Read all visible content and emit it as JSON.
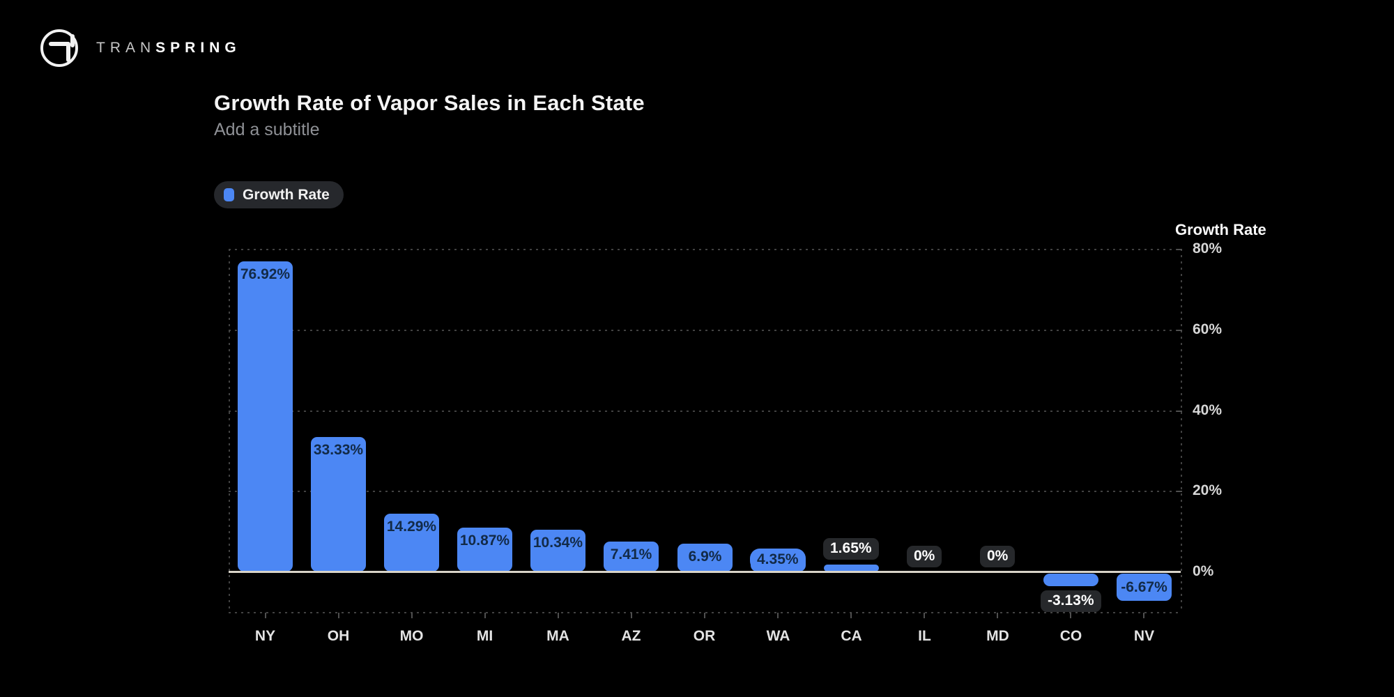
{
  "brand": {
    "name_light": "TRAN",
    "name_bold": "SPRING",
    "logo_icon": "transpring-circle-arrow"
  },
  "header": {
    "title": "Growth Rate of Vapor Sales in Each State",
    "subtitle": "Add a subtitle"
  },
  "legend": {
    "label": "Growth Rate",
    "swatch_color": "#4c87f4"
  },
  "colors": {
    "background": "#000000",
    "bar": "#4c87f4",
    "bar_label_text": "#122a47",
    "dark_pill_bg": "#26282b",
    "dark_pill_text": "#ffffff",
    "zero_line": "#d8d3c8",
    "grid_dots": "#424242"
  },
  "chart_data": {
    "type": "bar",
    "title": "Growth Rate of Vapor Sales in Each State",
    "subtitle": "Add a subtitle",
    "categories": [
      "NY",
      "OH",
      "MO",
      "MI",
      "MA",
      "AZ",
      "OR",
      "WA",
      "CA",
      "IL",
      "MD",
      "CO",
      "NV"
    ],
    "series": [
      {
        "name": "Growth Rate",
        "values": [
          76.92,
          33.33,
          14.29,
          10.87,
          10.34,
          7.41,
          6.9,
          4.35,
          1.65,
          0,
          0,
          -3.13,
          -6.67
        ],
        "value_labels": [
          "76.92%",
          "33.33%",
          "14.29%",
          "10.87%",
          "10.34%",
          "7.41%",
          "6.9%",
          "4.35%",
          "1.65%",
          "0%",
          "0%",
          "-3.13%",
          "-6.67%"
        ]
      }
    ],
    "xlabel": "",
    "ylabel": "Growth Rate",
    "ytick_values": [
      80,
      60,
      40,
      20,
      0
    ],
    "ytick_labels": [
      "80%",
      "60%",
      "40%",
      "20%",
      "0%"
    ],
    "ylim": [
      -10,
      80
    ],
    "grid": "dotted-horizontal",
    "legend_position": "top-left",
    "bar_color": "#4c87f4"
  }
}
